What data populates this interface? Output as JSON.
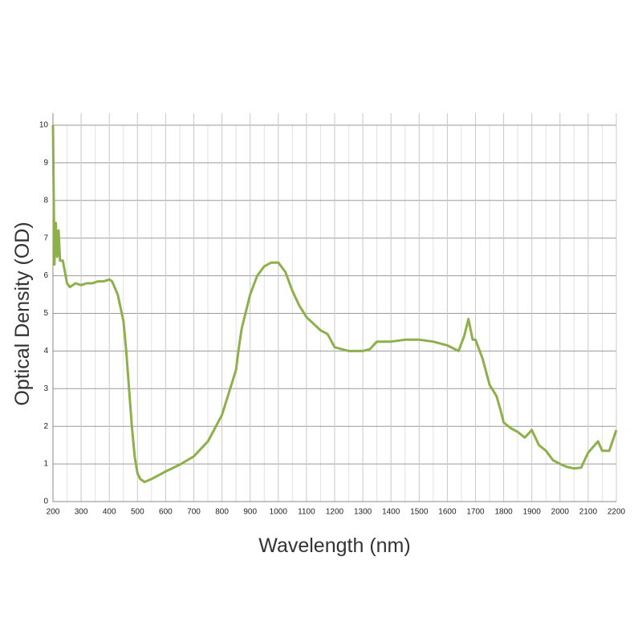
{
  "chart_data": {
    "type": "line",
    "x_label": "Wavelength (nm)",
    "y_label": "Optical Density (OD)",
    "x": [
      200,
      205,
      210,
      215,
      220,
      225,
      235,
      250,
      260,
      280,
      300,
      320,
      340,
      360,
      380,
      400,
      410,
      430,
      450,
      460,
      470,
      480,
      490,
      500,
      510,
      525,
      550,
      600,
      650,
      700,
      750,
      800,
      850,
      860,
      870,
      900,
      925,
      950,
      975,
      1000,
      1025,
      1050,
      1075,
      1100,
      1150,
      1175,
      1200,
      1250,
      1300,
      1325,
      1350,
      1400,
      1450,
      1500,
      1550,
      1600,
      1640,
      1660,
      1675,
      1690,
      1700,
      1725,
      1750,
      1775,
      1790,
      1800,
      1825,
      1850,
      1875,
      1900,
      1925,
      1950,
      1975,
      2000,
      2025,
      2050,
      2075,
      2100,
      2135,
      2150,
      2175,
      2200
    ],
    "values": [
      10,
      6.3,
      7.4,
      6.5,
      7.2,
      6.4,
      6.4,
      5.8,
      5.7,
      5.8,
      5.75,
      5.8,
      5.8,
      5.85,
      5.85,
      5.9,
      5.85,
      5.5,
      4.8,
      4.0,
      3.0,
      2.0,
      1.2,
      0.75,
      0.6,
      0.52,
      0.6,
      0.8,
      0.98,
      1.2,
      1.6,
      2.3,
      3.5,
      4.1,
      4.6,
      5.5,
      6.0,
      6.25,
      6.35,
      6.35,
      6.1,
      5.6,
      5.2,
      4.9,
      4.55,
      4.45,
      4.1,
      4.0,
      4.0,
      4.05,
      4.25,
      4.25,
      4.3,
      4.3,
      4.25,
      4.15,
      4.0,
      4.4,
      4.85,
      4.3,
      4.3,
      3.8,
      3.1,
      2.8,
      2.4,
      2.1,
      1.95,
      1.85,
      1.7,
      1.9,
      1.5,
      1.35,
      1.1,
      1.0,
      0.92,
      0.88,
      0.9,
      1.3,
      1.6,
      1.35,
      1.35,
      1.9
    ],
    "color": "#8db04a",
    "xlim": [
      200,
      2200
    ],
    "xticks": [
      200,
      300,
      400,
      500,
      600,
      700,
      800,
      900,
      1000,
      1100,
      1200,
      1300,
      1400,
      1500,
      1600,
      1700,
      1800,
      1900,
      2000,
      2100,
      2200
    ],
    "ylim": [
      0,
      10
    ],
    "yticks": [
      0,
      1,
      2,
      3,
      4,
      5,
      6,
      7,
      8,
      9,
      10
    ],
    "grid": true
  }
}
